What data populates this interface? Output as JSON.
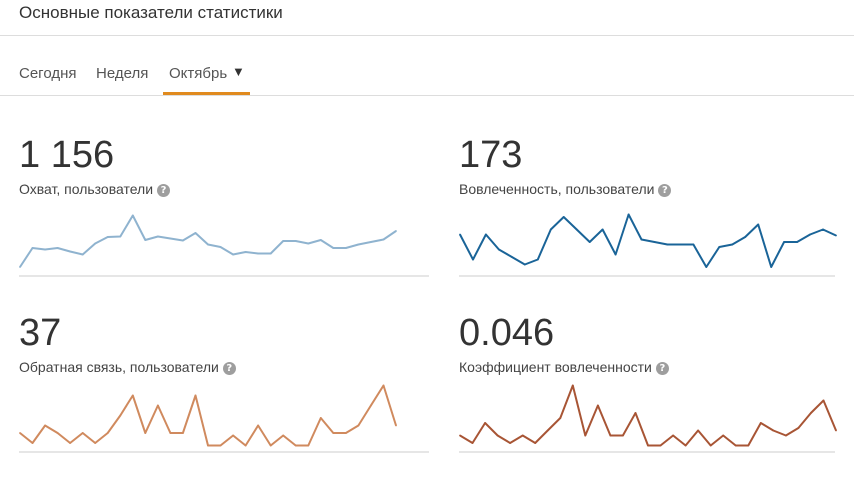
{
  "header": {
    "title": "Основные показатели статистики"
  },
  "tabs": {
    "today": "Сегодня",
    "week": "Неделя",
    "month": "Октябрь",
    "caret": "▼"
  },
  "stats": [
    {
      "value": "1 156",
      "label": "Охват, пользователи",
      "help": "?",
      "color": "#8fb3cf",
      "series": [
        1,
        4.8,
        4.5,
        4.8,
        4.1,
        3.5,
        5.7,
        7,
        7.1,
        11.3,
        6.4,
        7.1,
        6.7,
        6.3,
        7.8,
        5.5,
        5,
        3.5,
        4,
        3.7,
        3.7,
        6.2,
        6.2,
        5.7,
        6.4,
        4.8,
        4.8,
        5.5,
        6,
        6.5,
        8.2
      ]
    },
    {
      "value": "173",
      "label": "Вовлеченность, пользователи",
      "help": "?",
      "color": "#1a6498",
      "series": [
        7.5,
        2.5,
        7.5,
        4.5,
        3,
        1.5,
        2.5,
        8.5,
        11,
        8.5,
        6,
        8.5,
        3.5,
        11.5,
        6.5,
        6,
        5.5,
        5.5,
        5.5,
        1,
        5,
        5.5,
        7,
        9.5,
        1,
        6,
        6,
        7.5,
        8.5,
        7.3
      ]
    },
    {
      "value": "37",
      "label": "Обратная связь, пользователи",
      "help": "?",
      "color": "#d08a5e",
      "series": [
        3,
        1,
        4.5,
        3,
        1,
        3,
        1,
        3,
        6.5,
        10.5,
        3,
        8.5,
        3,
        3,
        10.5,
        0.5,
        0.5,
        2.5,
        0.5,
        4.5,
        0.5,
        2.5,
        0.5,
        0.5,
        6,
        3,
        3,
        4.5,
        8.5,
        12.5,
        4.5
      ]
    },
    {
      "value": "0.046",
      "label": "Коэффициент вовлеченности",
      "help": "?",
      "color": "#a85535",
      "series": [
        2.5,
        1,
        5,
        2.5,
        1,
        2.5,
        1,
        3.5,
        6,
        12.5,
        2.5,
        8.5,
        2.5,
        2.5,
        7,
        0.5,
        0.5,
        2.5,
        0.5,
        3.5,
        0.5,
        2.5,
        0.5,
        0.5,
        5,
        3.5,
        2.5,
        4,
        7,
        9.5,
        3.5
      ]
    }
  ]
}
